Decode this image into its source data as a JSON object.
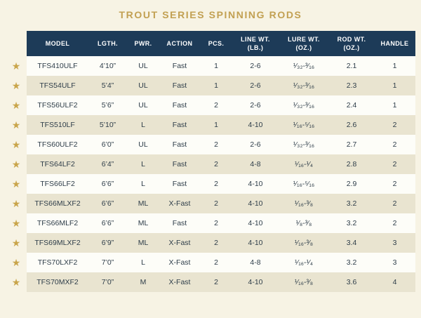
{
  "page": {
    "title": "TROUT SERIES SPINNING RODS",
    "background_color": "#f7f3e4",
    "title_color": "#c2a052",
    "header_color": "#1d3b58",
    "stripe_color": "#e9e4d0",
    "star_color": "#c9a54b"
  },
  "icons": {
    "star_icon": "★"
  },
  "table": {
    "columns": [
      {
        "id": "model",
        "label": "MODEL"
      },
      {
        "id": "length",
        "label": "LGTH."
      },
      {
        "id": "power",
        "label": "PWR."
      },
      {
        "id": "action",
        "label": "ACTION"
      },
      {
        "id": "pieces",
        "label": "PCS."
      },
      {
        "id": "line_wt",
        "label": "LINE WT.",
        "sub": "(LB.)"
      },
      {
        "id": "lure_wt",
        "label": "LURE WT.",
        "sub": "(OZ.)"
      },
      {
        "id": "rod_wt",
        "label": "ROD WT.",
        "sub": "(OZ.)"
      },
      {
        "id": "handle",
        "label": "HANDLE"
      }
    ],
    "rows": [
      {
        "featured": true,
        "model": "TFS410ULF",
        "length": "4’10”",
        "power": "UL",
        "action": "Fast",
        "pieces": "1",
        "line_wt": "2-6",
        "lure_wt": "¹⁄₃₂-³⁄₁₆",
        "rod_wt": "2.1",
        "handle": "1"
      },
      {
        "featured": true,
        "model": "TFS54ULF",
        "length": "5’4”",
        "power": "UL",
        "action": "Fast",
        "pieces": "1",
        "line_wt": "2-6",
        "lure_wt": "¹⁄₃₂-³⁄₁₆",
        "rod_wt": "2.3",
        "handle": "1"
      },
      {
        "featured": true,
        "model": "TFS56ULF2",
        "length": "5’6”",
        "power": "UL",
        "action": "Fast",
        "pieces": "2",
        "line_wt": "2-6",
        "lure_wt": "¹⁄₃₂-³⁄₁₆",
        "rod_wt": "2.4",
        "handle": "1"
      },
      {
        "featured": true,
        "model": "TFS510LF",
        "length": "5’10”",
        "power": "L",
        "action": "Fast",
        "pieces": "1",
        "line_wt": "4-10",
        "lure_wt": "¹⁄₁₆-⁵⁄₁₆",
        "rod_wt": "2.6",
        "handle": "2"
      },
      {
        "featured": true,
        "model": "TFS60ULF2",
        "length": "6’0”",
        "power": "UL",
        "action": "Fast",
        "pieces": "2",
        "line_wt": "2-6",
        "lure_wt": "¹⁄₃₂-³⁄₁₆",
        "rod_wt": "2.7",
        "handle": "2"
      },
      {
        "featured": true,
        "model": "TFS64LF2",
        "length": "6’4”",
        "power": "L",
        "action": "Fast",
        "pieces": "2",
        "line_wt": "4-8",
        "lure_wt": "¹⁄₁₆-¹⁄₄",
        "rod_wt": "2.8",
        "handle": "2"
      },
      {
        "featured": true,
        "model": "TFS66LF2",
        "length": "6’6”",
        "power": "L",
        "action": "Fast",
        "pieces": "2",
        "line_wt": "4-10",
        "lure_wt": "¹⁄₁₆-⁵⁄₁₆",
        "rod_wt": "2.9",
        "handle": "2"
      },
      {
        "featured": true,
        "model": "TFS66MLXF2",
        "length": "6’6”",
        "power": "ML",
        "action": "X-Fast",
        "pieces": "2",
        "line_wt": "4-10",
        "lure_wt": "¹⁄₁₆-³⁄₈",
        "rod_wt": "3.2",
        "handle": "2"
      },
      {
        "featured": true,
        "model": "TFS66MLF2",
        "length": "6’6”",
        "power": "ML",
        "action": "Fast",
        "pieces": "2",
        "line_wt": "4-10",
        "lure_wt": "¹⁄₈-³⁄₈",
        "rod_wt": "3.2",
        "handle": "2"
      },
      {
        "featured": true,
        "model": "TFS69MLXF2",
        "length": "6’9”",
        "power": "ML",
        "action": "X-Fast",
        "pieces": "2",
        "line_wt": "4-10",
        "lure_wt": "¹⁄₁₆-³⁄₈",
        "rod_wt": "3.4",
        "handle": "3"
      },
      {
        "featured": true,
        "model": "TFS70LXF2",
        "length": "7’0”",
        "power": "L",
        "action": "X-Fast",
        "pieces": "2",
        "line_wt": "4-8",
        "lure_wt": "¹⁄₁₆-¹⁄₄",
        "rod_wt": "3.2",
        "handle": "3"
      },
      {
        "featured": true,
        "model": "TFS70MXF2",
        "length": "7’0”",
        "power": "M",
        "action": "X-Fast",
        "pieces": "2",
        "line_wt": "4-10",
        "lure_wt": "¹⁄₁₆-³⁄₈",
        "rod_wt": "3.6",
        "handle": "4"
      }
    ]
  }
}
